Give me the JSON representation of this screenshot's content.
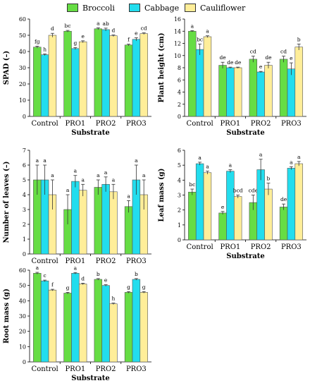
{
  "legend": {
    "broccoli": "Broccoli",
    "cabbage": "Cabbage",
    "cauliflower": "Cauliflower"
  },
  "colors": {
    "broccoli": "#66dd44",
    "cabbage": "#22ddee",
    "cauliflower": "#ffee99"
  },
  "chart_data": [
    {
      "type": "bar",
      "id": "spad",
      "title": "",
      "xlabel": "Substrate",
      "ylabel": "SPAD (–)",
      "categories": [
        "Control",
        "PRO1",
        "PRO2",
        "PRO3"
      ],
      "ylim": [
        0,
        60
      ],
      "yticks": [
        0,
        10,
        20,
        30,
        40,
        50,
        60
      ],
      "series": [
        {
          "name": "Broccoli",
          "values": [
            42.7,
            52.5,
            54.0,
            44.0
          ],
          "errors": [
            0.6,
            0.5,
            0.6,
            0.5
          ],
          "labels": [
            "fg",
            "bc",
            "a",
            "f"
          ]
        },
        {
          "name": "Cabbage",
          "values": [
            38.0,
            41.8,
            53.5,
            47.5
          ],
          "errors": [
            0.5,
            0.6,
            0.9,
            1.0
          ],
          "labels": [
            "h",
            "g",
            "ab",
            "e"
          ]
        },
        {
          "name": "Cauliflower",
          "values": [
            50.0,
            46.0,
            49.7,
            51.0
          ],
          "errors": [
            1.2,
            0.6,
            0.5,
            0.5
          ],
          "labels": [
            "d",
            "e",
            "d",
            "cd"
          ]
        }
      ]
    },
    {
      "type": "bar",
      "id": "plant-height",
      "title": "",
      "xlabel": "Substrate",
      "ylabel": "Plant height (cm)",
      "categories": [
        "Control",
        "PRO1",
        "PRO2",
        "PRO3"
      ],
      "ylim": [
        0,
        16
      ],
      "yticks": [
        0,
        2,
        4,
        6,
        8,
        10,
        12,
        14,
        16
      ],
      "series": [
        {
          "name": "Broccoli",
          "values": [
            14.0,
            8.4,
            9.4,
            9.4
          ],
          "errors": [
            0.1,
            0.5,
            0.5,
            0.5
          ],
          "labels": [
            "a",
            "de",
            "cd",
            "cd"
          ]
        },
        {
          "name": "Cabbage",
          "values": [
            11.0,
            8.0,
            7.3,
            7.8
          ],
          "errors": [
            0.9,
            0.1,
            0.1,
            1.0
          ],
          "labels": [
            "bc",
            "de",
            "e",
            "e"
          ]
        },
        {
          "name": "Cauliflower",
          "values": [
            13.1,
            8.0,
            8.4,
            11.4
          ],
          "errors": [
            0.15,
            0.1,
            0.5,
            0.5
          ],
          "labels": [
            "a",
            "de",
            "de",
            "b"
          ]
        }
      ]
    },
    {
      "type": "bar",
      "id": "number-of-leaves",
      "title": "",
      "xlabel": "",
      "ylabel": "Number of leaves (–)",
      "categories": [
        "Control",
        "PRO1",
        "PRO2",
        "PRO3"
      ],
      "ylim": [
        0,
        7
      ],
      "yticks": [
        0,
        1,
        2,
        3,
        4,
        5,
        6,
        7
      ],
      "series": [
        {
          "name": "Broccoli",
          "values": [
            5.0,
            3.0,
            4.5,
            3.2
          ],
          "errors": [
            1.0,
            1.0,
            0.5,
            0.4
          ],
          "labels": [
            "a",
            "a",
            "a",
            "a"
          ]
        },
        {
          "name": "Cabbage",
          "values": [
            5.0,
            4.9,
            4.7,
            5.0
          ],
          "errors": [
            1.0,
            0.4,
            0.5,
            1.0
          ],
          "labels": [
            "a",
            "a",
            "a",
            "a"
          ]
        },
        {
          "name": "Cauliflower",
          "values": [
            4.0,
            4.3,
            4.2,
            4.0
          ],
          "errors": [
            1.0,
            0.4,
            0.5,
            1.0
          ],
          "labels": [
            "a",
            "a",
            "a",
            "a"
          ]
        }
      ]
    },
    {
      "type": "bar",
      "id": "leaf-mass",
      "title": "",
      "xlabel": "Substrate",
      "ylabel": "Leaf mass (g)",
      "categories": [
        "Control",
        "PRO1",
        "PRO2",
        "PRO3"
      ],
      "ylim": [
        0,
        6
      ],
      "yticks": [
        0,
        1,
        2,
        3,
        4,
        5,
        6
      ],
      "series": [
        {
          "name": "Broccoli",
          "values": [
            3.2,
            1.8,
            2.5,
            2.2
          ],
          "errors": [
            0.2,
            0.1,
            0.5,
            0.2
          ],
          "labels": [
            "bc",
            "e",
            "cde",
            "de"
          ]
        },
        {
          "name": "Cabbage",
          "values": [
            5.1,
            4.6,
            4.7,
            4.8
          ],
          "errors": [
            0.1,
            0.1,
            0.7,
            0.1
          ],
          "labels": [
            "a",
            "a",
            "a",
            "a"
          ]
        },
        {
          "name": "Cauliflower",
          "values": [
            4.5,
            2.9,
            3.4,
            5.1
          ],
          "errors": [
            0.1,
            0.1,
            0.4,
            0.15
          ],
          "labels": [
            "a",
            "bcd",
            "b",
            "a"
          ]
        }
      ]
    },
    {
      "type": "bar",
      "id": "root-mass",
      "title": "",
      "xlabel": "Substrate",
      "ylabel": "Root mass (g)",
      "categories": [
        "Control",
        "PRO1",
        "PRO2",
        "PRO3"
      ],
      "ylim": [
        0,
        60
      ],
      "yticks": [
        0,
        10,
        20,
        30,
        40,
        50,
        60
      ],
      "series": [
        {
          "name": "Broccoli",
          "values": [
            58.0,
            45.0,
            54.0,
            45.5
          ],
          "errors": [
            0.6,
            0.5,
            0.5,
            0.5
          ],
          "labels": [
            "a",
            "g",
            "b",
            "g"
          ]
        },
        {
          "name": "Cabbage",
          "values": [
            53.0,
            58.0,
            50.0,
            54.0
          ],
          "errors": [
            0.5,
            0.5,
            0.5,
            0.5
          ],
          "labels": [
            "c",
            "a",
            "e",
            "b"
          ]
        },
        {
          "name": "Cauliflower",
          "values": [
            47.0,
            51.0,
            38.0,
            45.5
          ],
          "errors": [
            0.5,
            0.5,
            0.5,
            0.5
          ],
          "labels": [
            "f",
            "d",
            "h",
            "g"
          ]
        }
      ]
    }
  ]
}
